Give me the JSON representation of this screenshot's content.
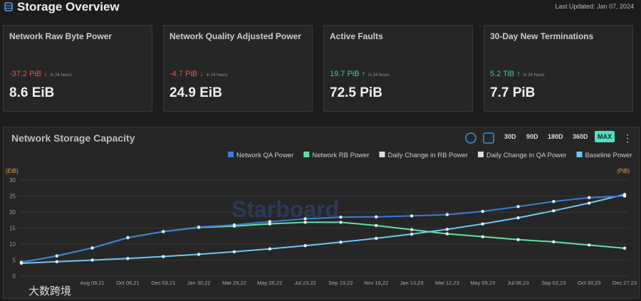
{
  "header": {
    "title": "Storage Overview",
    "updated": "Last Updated: Jan 07, 2024"
  },
  "cards": [
    {
      "title": "Network Raw Byte Power",
      "change": "-37.2 PiB",
      "period": "in 24 hours",
      "value": "8.6 EiB"
    },
    {
      "title": "Network Quality Adjusted Power",
      "change": "-4.7 PiB",
      "period": "in 24 hours",
      "value": "24.9 EiB"
    },
    {
      "title": "Active Faults",
      "change": "19.7 PiB",
      "period": "in 24 hours",
      "value": "72.5 PiB"
    },
    {
      "title": "30-Day New Terminations",
      "change": "5.2 TiB",
      "period": "in 24 hours",
      "value": "7.7 PiB"
    }
  ],
  "ranges": [
    "30D",
    "90D",
    "180D",
    "360D",
    "MAX"
  ],
  "watermarks": [
    "Starboard",
    "大数跨境"
  ],
  "chart_data": {
    "type": "line",
    "title": "Network Storage Capacity",
    "ylabel": "(EiB)",
    "y2label": "(PiB)",
    "categories": [
      null,
      null,
      "Aug 09,21",
      "Oct 06,21",
      "Dec 03,21",
      "Jan 30,22",
      "Mar 29,22",
      "May 26,22",
      "Jul 23,22",
      "Sep 19,22",
      "Nov 16,22",
      "Jan 13,23",
      "Mar 12,23",
      "May 09,23",
      "Jul 06,23",
      "Sep 02,23",
      "Oct 30,23",
      "Dec 27,23"
    ],
    "series": [
      {
        "name": "Network QA Power",
        "color": "#3b7dd8",
        "values": [
          4.3,
          6.3,
          8.8,
          12,
          13.9,
          15.3,
          16.0,
          17.0,
          17.9,
          18.4,
          18.5,
          18.8,
          19.2,
          20.2,
          21.7,
          23.3,
          24.5,
          25.0
        ]
      },
      {
        "name": "Network RB Power",
        "color": "#5fe3a1",
        "values": [
          4.3,
          6.3,
          8.8,
          12,
          13.9,
          15.2,
          15.6,
          16.3,
          16.8,
          16.8,
          15.8,
          14.5,
          13.2,
          12.3,
          11.4,
          10.7,
          9.7,
          8.7
        ]
      },
      {
        "name": "Daily Change in RB Power",
        "color": "#dddddd",
        "values": [
          null,
          null,
          null,
          null,
          null,
          null,
          null,
          null,
          null,
          null,
          null,
          null,
          null,
          null,
          null,
          null,
          null,
          null
        ]
      },
      {
        "name": "Daily Change in QA Power",
        "color": "#dddddd",
        "values": [
          null,
          null,
          null,
          null,
          null,
          null,
          null,
          null,
          null,
          null,
          null,
          null,
          null,
          null,
          null,
          null,
          null,
          null
        ]
      },
      {
        "name": "Baseline Power",
        "color": "#6ec6f5",
        "values": [
          4.0,
          4.5,
          5.0,
          5.5,
          6.1,
          6.8,
          7.6,
          8.5,
          9.5,
          10.6,
          11.8,
          13.1,
          14.6,
          16.3,
          18.2,
          20.4,
          22.8,
          25.5
        ]
      }
    ],
    "ylim": [
      0,
      30
    ],
    "yticks": [
      0,
      5,
      10,
      15,
      20,
      25,
      30
    ],
    "grid": true
  }
}
